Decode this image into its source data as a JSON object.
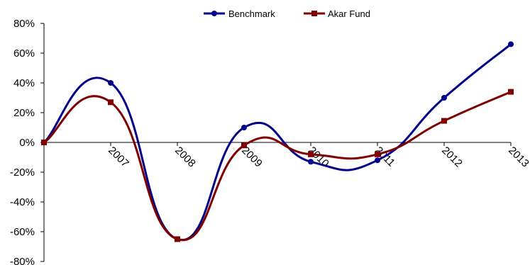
{
  "chart_data": {
    "type": "line",
    "title": "",
    "xlabel": "",
    "ylabel": "",
    "x": [
      "",
      "2007",
      "2008",
      "2009",
      "2010",
      "2011",
      "2012",
      "2013"
    ],
    "y_ticks": [
      "80%",
      "60%",
      "40%",
      "20%",
      "0%",
      "-20%",
      "-40%",
      "-60%",
      "-80%"
    ],
    "ylim": [
      -80,
      80
    ],
    "y_unit": "%",
    "grid": false,
    "legend_position": "top-center",
    "smooth": true,
    "series": [
      {
        "name": "Benchmark",
        "color": "#00008b",
        "marker": "circle",
        "values": [
          0,
          40,
          -65,
          10,
          -13,
          -12,
          30,
          66
        ]
      },
      {
        "name": "Akar Fund",
        "color": "#800000",
        "marker": "square",
        "values": [
          0,
          27,
          -65,
          -2,
          -8,
          -8,
          14.5,
          34
        ]
      }
    ]
  }
}
